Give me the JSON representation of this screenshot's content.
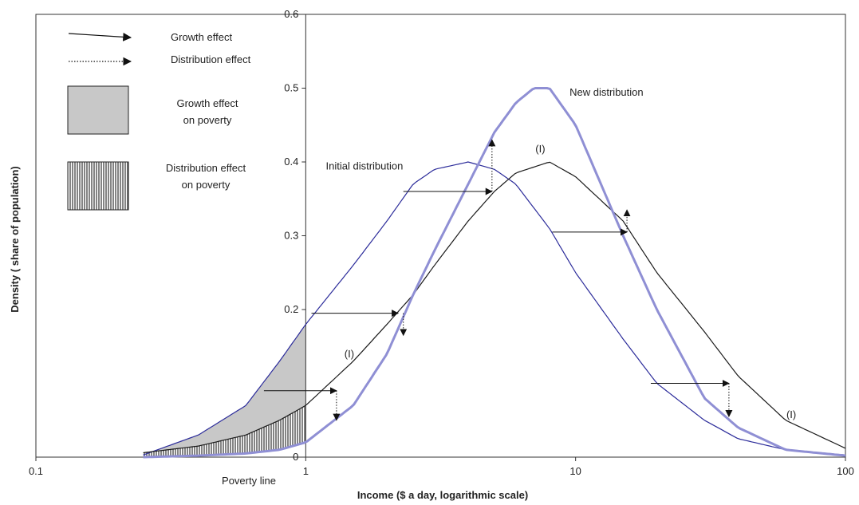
{
  "chart_data": {
    "type": "line",
    "title": "",
    "xlabel": "Income ($ a day, logarithmic scale)",
    "ylabel": "Density ( share of population)",
    "x_scale": "log",
    "xlim": [
      0.1,
      100
    ],
    "ylim": [
      0,
      0.6
    ],
    "x_ticks": [
      "0.1",
      "1",
      "10",
      "100"
    ],
    "y_ticks": [
      "0",
      "0.2",
      "0.3",
      "0.4",
      "0.5",
      "0.6"
    ],
    "x_tick_values": [
      0.1,
      1,
      10,
      100
    ],
    "y_tick_values": [
      0,
      0.2,
      0.3,
      0.4,
      0.5,
      0.6
    ],
    "grid": false,
    "poverty_line": {
      "label": "Poverty line",
      "x": 1
    },
    "series": [
      {
        "name": "Initial distribution",
        "color": "#2b2b9a",
        "x": [
          0.25,
          0.4,
          0.6,
          0.8,
          1.0,
          1.5,
          2.0,
          2.5,
          3.0,
          4.0,
          5.0,
          6.0,
          8.0,
          10.0,
          15.0,
          20.0,
          30.0,
          40.0,
          60.0,
          100.0
        ],
        "y": [
          0.003,
          0.03,
          0.07,
          0.13,
          0.18,
          0.26,
          0.32,
          0.37,
          0.39,
          0.4,
          0.39,
          0.37,
          0.31,
          0.25,
          0.16,
          0.1,
          0.05,
          0.025,
          0.01,
          0.003
        ]
      },
      {
        "name": "",
        "annotation": "(I)",
        "color": "#1a1a1a",
        "x": [
          0.25,
          0.4,
          0.6,
          0.8,
          1.0,
          1.5,
          2.0,
          2.5,
          3.0,
          4.0,
          5.0,
          6.0,
          8.0,
          10.0,
          15.0,
          20.0,
          30.0,
          40.0,
          60.0,
          100.0
        ],
        "y": [
          0.006,
          0.015,
          0.03,
          0.05,
          0.07,
          0.13,
          0.18,
          0.22,
          0.26,
          0.32,
          0.36,
          0.385,
          0.4,
          0.38,
          0.32,
          0.25,
          0.17,
          0.11,
          0.05,
          0.012
        ]
      },
      {
        "name": "New distribution",
        "color": "#8f8fd4",
        "x": [
          0.25,
          0.4,
          0.6,
          0.8,
          1.0,
          1.5,
          2.0,
          2.5,
          3.0,
          4.0,
          5.0,
          6.0,
          7.0,
          8.0,
          10.0,
          15.0,
          20.0,
          30.0,
          40.0,
          60.0,
          100.0
        ],
        "y": [
          0.0,
          0.002,
          0.005,
          0.01,
          0.02,
          0.07,
          0.14,
          0.22,
          0.28,
          0.37,
          0.44,
          0.48,
          0.5,
          0.5,
          0.45,
          0.3,
          0.2,
          0.08,
          0.04,
          0.01,
          0.002
        ]
      }
    ],
    "growth_arrows": [
      {
        "x1": 1.05,
        "x2": 2.2,
        "y": 0.195
      },
      {
        "x1": 0.7,
        "x2": 1.3,
        "y": 0.09
      },
      {
        "x1": 2.3,
        "x2": 4.9,
        "y": 0.36
      },
      {
        "x1": 8.2,
        "x2": 15.5,
        "y": 0.305
      },
      {
        "x1": 19.0,
        "x2": 37.0,
        "y": 0.1
      }
    ],
    "distribution_arrows": [
      {
        "x": 2.3,
        "y1": 0.195,
        "y2": 0.165
      },
      {
        "x": 1.3,
        "y1": 0.09,
        "y2": 0.05
      },
      {
        "x": 4.9,
        "y1": 0.36,
        "y2": 0.43
      },
      {
        "x": 15.5,
        "y1": 0.305,
        "y2": 0.335
      },
      {
        "x": 37.0,
        "y1": 0.1,
        "y2": 0.055
      }
    ],
    "annotations": [
      {
        "text": "(I)",
        "x": 7.4,
        "y": 0.413
      },
      {
        "text": "(I)",
        "x": 1.45,
        "y": 0.135
      },
      {
        "text": "(I)",
        "x": 63,
        "y": 0.053
      }
    ],
    "legend": {
      "placement": "top-left",
      "entries": [
        {
          "label": "Growth effect",
          "kind": "solid-arrow"
        },
        {
          "label": "Distribution effect",
          "kind": "dotted-arrow"
        },
        {
          "label": "Growth effect on poverty",
          "lines": [
            "Growth effect",
            "on poverty"
          ],
          "kind": "gray-box"
        },
        {
          "label": "Distribution effect on poverty",
          "lines": [
            "Distribution effect",
            "on poverty"
          ],
          "kind": "hatched-box"
        }
      ]
    }
  }
}
